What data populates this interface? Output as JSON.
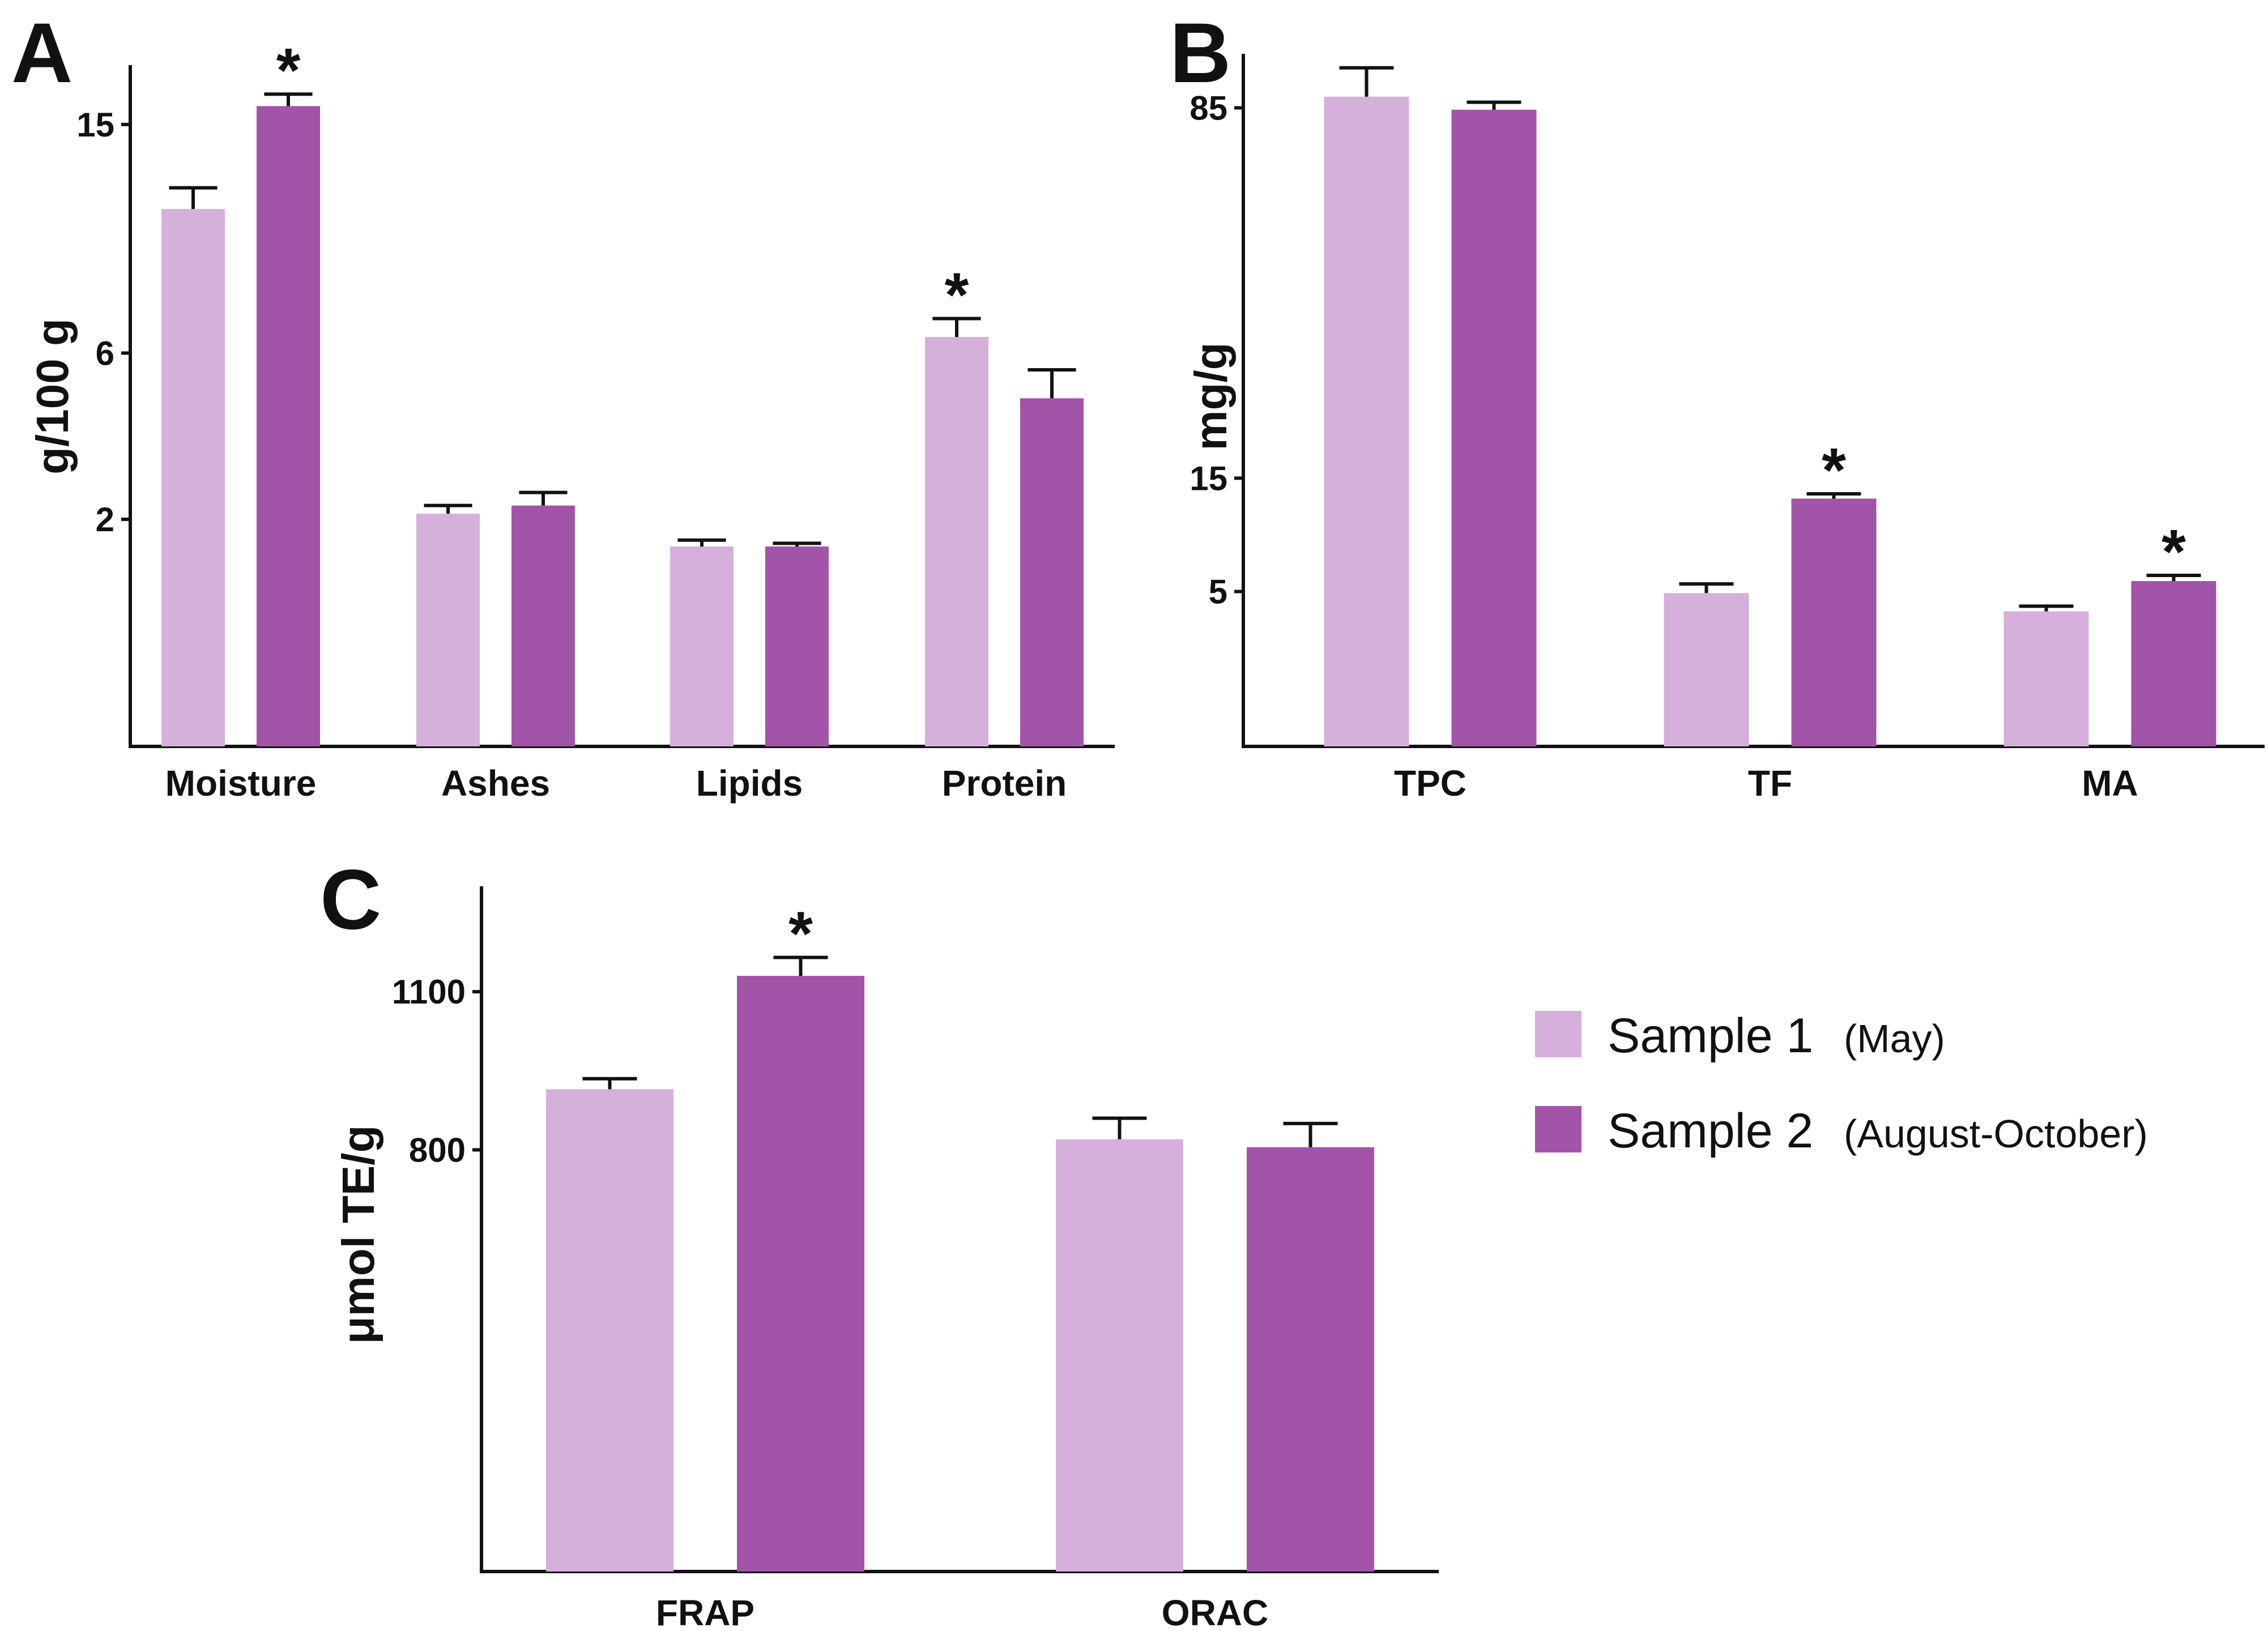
{
  "colors": {
    "sample1": "#d5b0da",
    "sample2": "#a254a9",
    "axis": "#111111"
  },
  "legend": {
    "items": [
      {
        "label": "Sample 1",
        "sub": "(May)"
      },
      {
        "label": "Sample 2",
        "sub": "(August-October)"
      }
    ]
  },
  "chart_data": [
    {
      "panel": "A",
      "type": "bar",
      "ylabel": "g/100 g",
      "yscale": "sqrt",
      "ylim": [
        0,
        18
      ],
      "yticks": [
        2,
        6,
        15
      ],
      "categories": [
        "Moisture",
        "Ashes",
        "Lipids",
        "Protein"
      ],
      "series": [
        {
          "name": "Sample 1",
          "values": [
            11.2,
            2.1,
            1.55,
            6.5
          ],
          "errors": [
            0.9,
            0.15,
            0.1,
            0.6
          ]
        },
        {
          "name": "Sample 2",
          "values": [
            15.9,
            2.25,
            1.55,
            4.7
          ],
          "errors": [
            0.6,
            0.25,
            0.05,
            0.8
          ]
        }
      ],
      "significance": [
        {
          "category": "Moisture",
          "series": "Sample 2",
          "mark": "*"
        },
        {
          "category": "Protein",
          "series": "Sample 1",
          "mark": "*"
        }
      ]
    },
    {
      "panel": "B",
      "type": "bar",
      "ylabel": "mg/g",
      "yscale": "sqrt",
      "ylim": [
        0,
        100
      ],
      "yticks": [
        5,
        15,
        85
      ],
      "categories": [
        "TPC",
        "TF",
        "MA"
      ],
      "series": [
        {
          "name": "Sample 1",
          "values": [
            88,
            4.9,
            3.8
          ],
          "errors": [
            8,
            0.6,
            0.3
          ]
        },
        {
          "name": "Sample 2",
          "values": [
            84.5,
            12.8,
            5.7
          ],
          "errors": [
            2,
            0.5,
            0.4
          ]
        }
      ],
      "significance": [
        {
          "category": "TF",
          "series": "Sample 2",
          "mark": "*"
        },
        {
          "category": "MA",
          "series": "Sample 2",
          "mark": "*"
        }
      ]
    },
    {
      "panel": "C",
      "type": "bar",
      "ylabel": "μmol TE/g",
      "yscale": "linear",
      "ylim": [
        0,
        1300
      ],
      "yticks": [
        800,
        1100
      ],
      "categories": [
        "FRAP",
        "ORAC"
      ],
      "series": [
        {
          "name": "Sample 1",
          "values": [
            915,
            820
          ],
          "errors": [
            20,
            40
          ]
        },
        {
          "name": "Sample 2",
          "values": [
            1130,
            805
          ],
          "errors": [
            35,
            45
          ]
        }
      ],
      "significance": [
        {
          "category": "FRAP",
          "series": "Sample 2",
          "mark": "*"
        }
      ]
    }
  ]
}
